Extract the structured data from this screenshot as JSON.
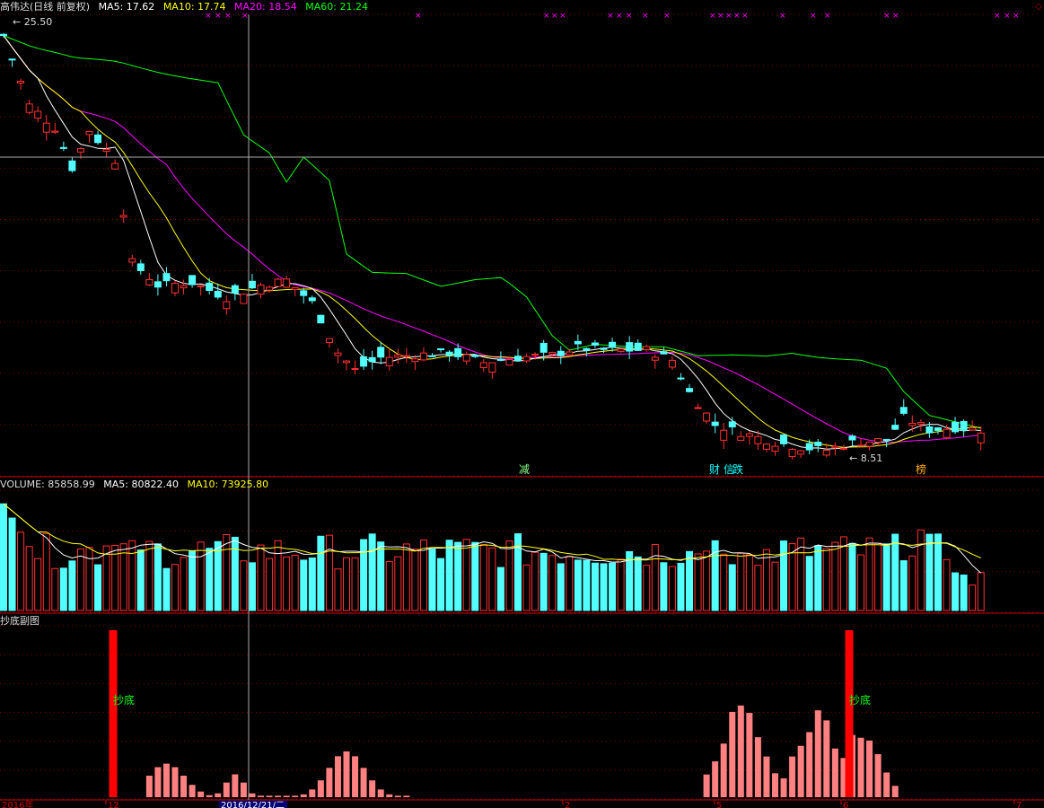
{
  "main_panel": {
    "stock_name": "高伟达(日线 前复权)",
    "ma5": "MA5: 17.62",
    "ma10": "MA10: 17.74",
    "ma20": "MA20: 18.54",
    "ma60": "MA60: 21.24",
    "high_label": "25.50",
    "low_label": "8.51",
    "event_marks": [
      "减",
      "财",
      "信",
      "跌",
      "榜"
    ],
    "corner_mark": "◇"
  },
  "volume_panel": {
    "volume": "VOLUME: 85858.99",
    "ma5": "MA5: 80822.40",
    "ma10": "MA10: 73925.80"
  },
  "indicator_panel": {
    "title": "抄底副图",
    "signal_label": "抄底"
  },
  "x_axis": {
    "year_label": "2016年",
    "cursor_date": "2016/12/21/二",
    "month_ticks": [
      "12",
      "2",
      "5",
      "6",
      "7"
    ]
  },
  "colors": {
    "up": "#ff3030",
    "down": "#54ffff",
    "ma5": "#ffffff",
    "ma10": "#ffff00",
    "ma20": "#ff00ff",
    "ma60": "#00ff00",
    "indicator": "#ff8080",
    "signal": "#ff0000",
    "grid": "#7a0000"
  }
}
